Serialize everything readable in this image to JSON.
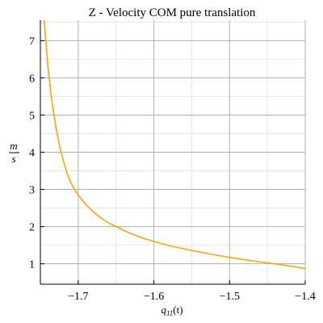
{
  "chart_data": {
    "type": "line",
    "title": "Z - Velocity COM pure translation",
    "xlabel": {
      "base": "q",
      "subscript": "11",
      "arg": "(t)"
    },
    "ylabel": {
      "numerator": "m",
      "denominator": "s"
    },
    "xlim": [
      -1.75,
      -1.4
    ],
    "ylim": [
      0.45,
      7.55
    ],
    "x_ticks": [
      -1.7,
      -1.6,
      -1.5,
      -1.4
    ],
    "x_tick_labels": [
      "−1.7",
      "−1.6",
      "−1.5",
      "−1.4"
    ],
    "y_ticks": [
      1,
      2,
      3,
      4,
      5,
      6,
      7
    ],
    "y_tick_labels": [
      "1",
      "2",
      "3",
      "4",
      "5",
      "6",
      "7"
    ],
    "grid": true,
    "series": [
      {
        "color": "#FFA500",
        "x": [
          -1.745,
          -1.74,
          -1.735,
          -1.73,
          -1.725,
          -1.72,
          -1.715,
          -1.71,
          -1.705,
          -1.7,
          -1.69,
          -1.68,
          -1.67,
          -1.66,
          -1.65,
          -1.64,
          -1.63,
          -1.62,
          -1.61,
          -1.6,
          -1.58,
          -1.56,
          -1.54,
          -1.52,
          -1.5,
          -1.48,
          -1.46,
          -1.44,
          -1.42,
          -1.4
        ],
        "y": [
          7.55,
          6.3,
          5.4,
          4.75,
          4.2,
          3.8,
          3.45,
          3.2,
          3.0,
          2.85,
          2.6,
          2.4,
          2.23,
          2.1,
          2.0,
          1.9,
          1.81,
          1.73,
          1.66,
          1.6,
          1.49,
          1.4,
          1.32,
          1.24,
          1.17,
          1.11,
          1.05,
          1.0,
          0.94,
          0.87
        ]
      }
    ]
  }
}
